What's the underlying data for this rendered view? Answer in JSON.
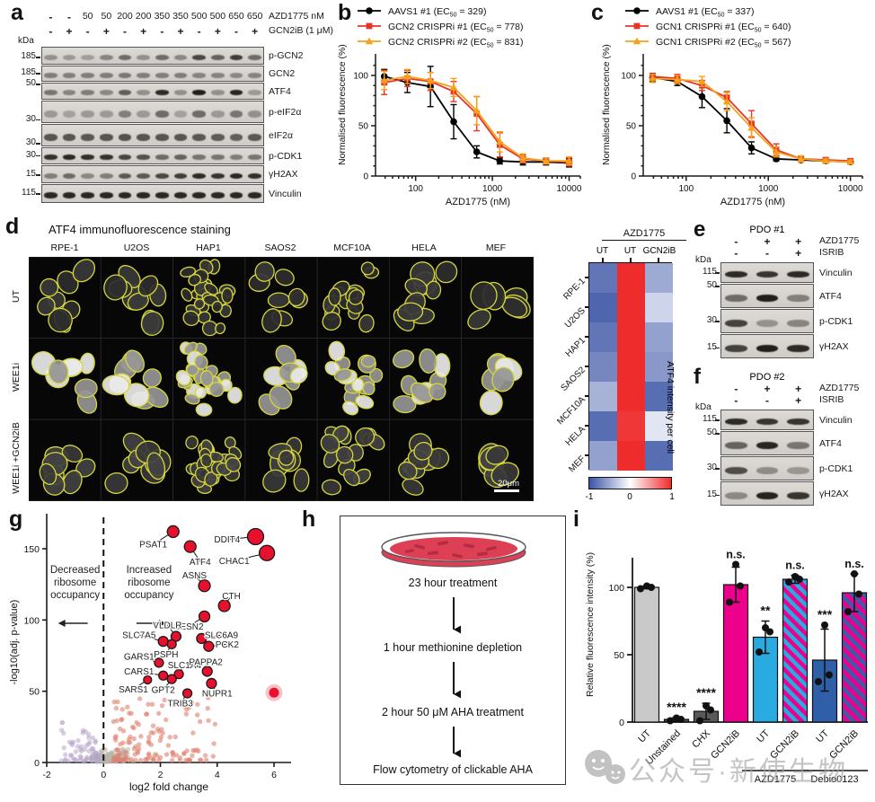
{
  "figure": {
    "panel_labels": {
      "a": "a",
      "b": "b",
      "c": "c",
      "d": "d",
      "e": "e",
      "f": "f",
      "g": "g",
      "h": "h",
      "i": "i"
    }
  },
  "panel_a": {
    "dose_values": [
      "-",
      "-",
      "50",
      "50",
      "200",
      "200",
      "350",
      "350",
      "500",
      "500",
      "650",
      "650"
    ],
    "dose_label": "AZD1775 nM",
    "inhibitor_values": [
      "-",
      "+",
      "-",
      "+",
      "-",
      "+",
      "-",
      "+",
      "-",
      "+",
      "-",
      "+"
    ],
    "inhibitor_label": "GCN2iB (1 μM)",
    "kda_label": "kDa",
    "blots": [
      {
        "target": "p-GCN2",
        "kda": "185",
        "kda_pos": 0.5,
        "bands": [
          0.35,
          0.3,
          0.28,
          0.42,
          0.55,
          0.35,
          0.55,
          0.4,
          0.75,
          0.6,
          0.8,
          0.55
        ]
      },
      {
        "target": "GCN2",
        "kda": "185",
        "kda_pos": 0.4,
        "bands": [
          0.45,
          0.45,
          0.45,
          0.45,
          0.48,
          0.45,
          0.45,
          0.45,
          0.42,
          0.42,
          0.4,
          0.42
        ]
      },
      {
        "target": "ATF4",
        "kda": "50",
        "kda_pos": 0.02,
        "bands": [
          0.5,
          0.42,
          0.46,
          0.4,
          0.62,
          0.36,
          0.9,
          0.36,
          0.97,
          0.36,
          0.93,
          0.3
        ]
      },
      {
        "target": "p-eIF2α",
        "kda": "30",
        "kda_pos": 0.78,
        "bands": [
          0.3,
          0.26,
          0.3,
          0.3,
          0.45,
          0.3,
          0.55,
          0.26,
          0.55,
          0.3,
          0.5,
          0.35
        ]
      },
      {
        "target": "eIF2α",
        "kda": "30",
        "kda_pos": 0.8,
        "bands": [
          0.68,
          0.68,
          0.66,
          0.68,
          0.7,
          0.68,
          0.68,
          0.68,
          0.66,
          0.64,
          0.62,
          0.66
        ]
      },
      {
        "target": "p-CDK1",
        "kda": "30",
        "kda_pos": 0.4,
        "bands": [
          0.88,
          0.92,
          0.88,
          0.86,
          0.76,
          0.7,
          0.56,
          0.6,
          0.5,
          0.5,
          0.46,
          0.5
        ]
      },
      {
        "target": "γH2AX",
        "kda": "15",
        "kda_pos": 0.45,
        "bands": [
          0.45,
          0.55,
          0.4,
          0.45,
          0.65,
          0.65,
          0.75,
          0.8,
          0.9,
          0.85,
          0.92,
          0.88
        ]
      },
      {
        "target": "Vinculin",
        "kda": "115",
        "kda_pos": 0.45,
        "bands": [
          0.92,
          0.92,
          0.92,
          0.92,
          0.92,
          0.92,
          0.92,
          0.92,
          0.92,
          0.92,
          0.92,
          0.92
        ]
      }
    ]
  },
  "panel_d": {
    "title": "ATF4 immunofluorescence staining",
    "columns": [
      "RPE-1",
      "U2OS",
      "HAP1",
      "SAOS2",
      "MCF10A",
      "HELA",
      "MEF"
    ],
    "rows": [
      "UT",
      "WEE1i",
      "WEE1i +GCN2iB"
    ],
    "scale_bar": "20μm",
    "cell_counts": [
      8,
      9,
      26,
      8,
      15,
      9,
      6
    ],
    "cell_size": [
      11,
      12,
      7,
      11,
      8.5,
      11,
      13
    ]
  },
  "panel_e": {
    "title": "PDO #1",
    "cond_rows": [
      {
        "values": [
          "-",
          "+",
          "+"
        ],
        "label": "AZD1775"
      },
      {
        "values": [
          "-",
          "-",
          "+"
        ],
        "label": "ISRIB"
      }
    ],
    "kda_label": "kDa",
    "blots": [
      {
        "target": "Vinculin",
        "kda": "115",
        "kda_pos": 0.45,
        "bands": [
          0.9,
          0.85,
          0.9
        ]
      },
      {
        "target": "ATF4",
        "kda": "50",
        "kda_pos": 0.05,
        "bands": [
          0.55,
          0.97,
          0.45
        ]
      },
      {
        "target": "p-CDK1",
        "kda": "30",
        "kda_pos": 0.45,
        "bands": [
          0.78,
          0.35,
          0.42
        ]
      },
      {
        "target": "γH2AX",
        "kda": "15",
        "kda_pos": 0.5,
        "bands": [
          0.78,
          0.97,
          0.9
        ]
      }
    ]
  },
  "panel_f": {
    "title": "PDO #2",
    "cond_rows": [
      {
        "values": [
          "-",
          "+",
          "+"
        ],
        "label": "AZD1775"
      },
      {
        "values": [
          "-",
          "-",
          "+"
        ],
        "label": "ISRIB"
      }
    ],
    "kda_label": "kDa",
    "blots": [
      {
        "target": "Vinculin",
        "kda": "115",
        "kda_pos": 0.45,
        "bands": [
          0.9,
          0.85,
          0.85
        ]
      },
      {
        "target": "ATF4",
        "kda": "50",
        "kda_pos": 0.05,
        "bands": [
          0.6,
          0.93,
          0.5
        ]
      },
      {
        "target": "p-CDK1",
        "kda": "30",
        "kda_pos": 0.45,
        "bands": [
          0.72,
          0.38,
          0.32
        ]
      },
      {
        "target": "γH2AX",
        "kda": "15",
        "kda_pos": 0.5,
        "bands": [
          0.4,
          0.95,
          0.85
        ]
      }
    ]
  },
  "panel_h": {
    "steps": [
      "23 hour treatment",
      "1 hour methionine depletion",
      "2 hour 50 μM AHA treatment",
      "Flow cytometry of clickable AHA"
    ]
  },
  "watermark": {
    "text": "公众号·新使生物"
  },
  "chart_data": [
    {
      "id": "b",
      "type": "line",
      "xlabel": "AZD1775 (nM)",
      "ylabel": "Normalised fluorescence (%)",
      "xscale": "log",
      "xticks": [
        100,
        1000,
        10000
      ],
      "yticks": [
        0,
        50,
        100
      ],
      "ylim": [
        0,
        120
      ],
      "x": [
        39,
        78,
        156,
        313,
        625,
        1250,
        2500,
        5000,
        10000
      ],
      "series": [
        {
          "name": "AAVS1 #1",
          "ec50": "329",
          "marker": "circle",
          "color": "#000000",
          "values": [
            99,
            93,
            89,
            54,
            24,
            15,
            14,
            14,
            13
          ],
          "errors": [
            7,
            10,
            20,
            17,
            6,
            3,
            3,
            3,
            4
          ]
        },
        {
          "name": "GCN2 CRISPRi #1",
          "ec50": "778",
          "marker": "square",
          "color": "#E8352A",
          "values": [
            93,
            97,
            94,
            84,
            62,
            31,
            17,
            15,
            14
          ],
          "errors": [
            12,
            8,
            9,
            10,
            17,
            12,
            4,
            3,
            4
          ]
        },
        {
          "name": "GCN2 CRISPRi #2",
          "ec50": "831",
          "marker": "triangle",
          "color": "#F7A11A",
          "values": [
            95,
            99,
            95,
            88,
            65,
            34,
            18,
            15,
            15
          ],
          "errors": [
            9,
            7,
            8,
            9,
            14,
            10,
            4,
            3,
            4
          ]
        }
      ]
    },
    {
      "id": "c",
      "type": "line",
      "xlabel": "AZD1775 (nM)",
      "ylabel": "Normalised fluorescence (%)",
      "xscale": "log",
      "xticks": [
        100,
        1000,
        10000
      ],
      "yticks": [
        0,
        50,
        100
      ],
      "ylim": [
        0,
        120
      ],
      "x": [
        39,
        78,
        156,
        313,
        625,
        1250,
        2500,
        5000,
        10000
      ],
      "series": [
        {
          "name": "AAVS1 #1",
          "ec50": "337",
          "marker": "circle",
          "color": "#000000",
          "values": [
            98,
            94,
            79,
            55,
            28,
            17,
            16,
            15,
            14
          ],
          "errors": [
            4,
            4,
            11,
            12,
            6,
            2,
            2,
            2,
            2
          ]
        },
        {
          "name": "GCN1 CRISPRi #1",
          "ec50": "640",
          "marker": "square",
          "color": "#E8352A",
          "values": [
            99,
            97,
            90,
            78,
            52,
            26,
            17,
            16,
            15
          ],
          "errors": [
            3,
            4,
            5,
            6,
            13,
            6,
            3,
            2,
            2
          ]
        },
        {
          "name": "GCN1 CRISPRi #2",
          "ec50": "567",
          "marker": "triangle",
          "color": "#F7A11A",
          "values": [
            97,
            96,
            94,
            74,
            48,
            24,
            17,
            15,
            14
          ],
          "errors": [
            4,
            4,
            5,
            9,
            10,
            5,
            3,
            2,
            2
          ]
        }
      ]
    },
    {
      "id": "d_heatmap",
      "type": "heatmap",
      "title": "AZD1775",
      "columns": [
        "UT",
        "UT",
        "GCN2iB"
      ],
      "rows": [
        "RPE-1",
        "U2OS",
        "HAP1",
        "SAOS2",
        "MCF10A",
        "HELA",
        "MEF"
      ],
      "values": [
        [
          -0.8,
          1,
          -0.5
        ],
        [
          -0.9,
          1,
          -0.25
        ],
        [
          -0.8,
          1,
          -0.55
        ],
        [
          -0.7,
          1,
          -0.6
        ],
        [
          -0.45,
          1,
          -0.85
        ],
        [
          -0.85,
          0.95,
          -0.15
        ],
        [
          -0.55,
          1,
          -0.85
        ]
      ],
      "colorbar_ticks": [
        "-1",
        "0",
        "1"
      ],
      "right_label": "ATF4 intensity per cell",
      "color_low": "#3B54A5",
      "color_mid": "#FFFFFF",
      "color_high": "#EE2C2C"
    },
    {
      "id": "g",
      "type": "scatter",
      "xlabel": "log2 fold change",
      "ylabel": "-log10(adj. p-value)",
      "xticks": [
        -2,
        0,
        2,
        4,
        6
      ],
      "yticks": [
        0,
        50,
        100,
        150
      ],
      "xlim": [
        -2,
        6.6
      ],
      "ylim": [
        0,
        172
      ],
      "annotations": [
        {
          "lines": [
            "Decreased",
            "ribosome",
            "occupancy"
          ],
          "arrow": "left",
          "x": -1.0
        },
        {
          "lines": [
            "Increased",
            "ribosome",
            "occupancy"
          ],
          "arrow": "right",
          "x": 1.6
        }
      ],
      "point_color": "#E8112D",
      "labeled_points": [
        {
          "name": "PSAT1",
          "x": 2.45,
          "y": 162,
          "r": 6.5,
          "lx": 1.75,
          "ly": 153
        },
        {
          "name": "ATF4",
          "x": 3.05,
          "y": 151.5,
          "r": 6.5,
          "lx": 3.4,
          "ly": 141
        },
        {
          "name": "DDIT4",
          "x": 5.35,
          "y": 158.5,
          "r": 9,
          "lx": 4.35,
          "ly": 156.5
        },
        {
          "name": "CHAC1",
          "x": 5.75,
          "y": 147,
          "r": 8.5,
          "lx": 4.6,
          "ly": 141.5
        },
        {
          "name": "ASNS",
          "x": 3.55,
          "y": 124,
          "r": 6.5,
          "lx": 3.2,
          "ly": 131.5
        },
        {
          "name": "CTH",
          "x": 4.25,
          "y": 110,
          "r": 6.5,
          "lx": 4.5,
          "ly": 117
        },
        {
          "name": "SESN2",
          "x": 3.55,
          "y": 102.5,
          "r": 6,
          "lx": 3.0,
          "ly": 95.5
        },
        {
          "name": "VLDLR",
          "x": 2.55,
          "y": 88.5,
          "r": 5.5,
          "lx": 2.25,
          "ly": 96.5
        },
        {
          "name": "SLC7A5",
          "x": 2.1,
          "y": 85,
          "r": 5.5,
          "lx": 1.25,
          "ly": 89.5
        },
        {
          "name": "SLC6A9",
          "x": 3.45,
          "y": 87,
          "r": 5.5,
          "lx": 4.15,
          "ly": 89.5
        },
        {
          "name": "PCK2",
          "x": 3.7,
          "y": 81.5,
          "r": 5.5,
          "lx": 4.35,
          "ly": 83
        },
        {
          "name": "PSPH",
          "x": 2.4,
          "y": 83,
          "r": 5,
          "lx": 2.2,
          "ly": 76
        },
        {
          "name": "GARS1",
          "x": 1.95,
          "y": 70,
          "r": 5,
          "lx": 1.25,
          "ly": 74.5
        },
        {
          "name": "CARS1",
          "x": 2.1,
          "y": 61,
          "r": 5,
          "lx": 1.25,
          "ly": 64
        },
        {
          "name": "SLC1A4",
          "x": 2.65,
          "y": 62,
          "r": 5,
          "lx": 2.85,
          "ly": 68.5
        },
        {
          "name": "SARS1",
          "x": 1.55,
          "y": 58,
          "r": 4.5,
          "lx": 1.05,
          "ly": 51.5
        },
        {
          "name": "GPT2",
          "x": 2.4,
          "y": 58.5,
          "r": 5,
          "lx": 2.1,
          "ly": 51
        },
        {
          "name": "PAPPA2",
          "x": 3.65,
          "y": 64,
          "r": 5.5,
          "lx": 3.6,
          "ly": 70.5
        },
        {
          "name": "NUPR1",
          "x": 3.8,
          "y": 55.5,
          "r": 5.5,
          "lx": 4.0,
          "ly": 48.5
        },
        {
          "name": "TRIB3",
          "x": 2.95,
          "y": 48.5,
          "r": 5,
          "lx": 2.7,
          "ly": 41.5
        }
      ],
      "unlabeled_point": {
        "x": 6.0,
        "y": 49,
        "r": 5.5
      }
    },
    {
      "id": "i",
      "type": "bar",
      "ylabel": "Relative fluorescence intensity (%)",
      "yticks": [
        0,
        50,
        100
      ],
      "ylim": [
        0,
        125
      ],
      "bars": [
        {
          "label": "UT",
          "value": 100,
          "error": 1,
          "sig": "",
          "fill": "#C9C9C9",
          "dots": [
            99,
            100,
            101
          ]
        },
        {
          "label": "Unstained",
          "value": 2,
          "error": 1.5,
          "sig": "****",
          "fill": "#4D4D4D",
          "dots": [
            1,
            2,
            3
          ]
        },
        {
          "label": "CHX",
          "value": 8,
          "error": 6,
          "sig": "****",
          "fill": "#595959",
          "dots": [
            1,
            9,
            12
          ]
        },
        {
          "label": "GCN2iB",
          "value": 102,
          "error": 13,
          "sig": "n.s.",
          "fill": "#EC008C",
          "dots": [
            89,
            101,
            117
          ]
        },
        {
          "label": "UT",
          "value": 63,
          "error": 12,
          "sig": "**",
          "fill": "#29ABE2",
          "dots": [
            52,
            67,
            70
          ]
        },
        {
          "label": "GCN2iB",
          "value": 106,
          "error": 3,
          "sig": "n.s.",
          "fill": "stripe-cyan",
          "dots": [
            104,
            106,
            108
          ]
        },
        {
          "label": "UT",
          "value": 46,
          "error": 23,
          "sig": "***",
          "fill": "#2E5FA8",
          "dots": [
            30,
            35,
            72
          ]
        },
        {
          "label": "GCN2iB",
          "value": 96,
          "error": 14,
          "sig": "n.s.",
          "fill": "stripe-blue",
          "dots": [
            82,
            95,
            110
          ]
        }
      ],
      "groups": [
        {
          "label": "AZD1775",
          "from": 4,
          "to": 5
        },
        {
          "label": "Debio0123",
          "from": 6,
          "to": 7
        }
      ],
      "stripe_colors": {
        "magenta": "#EC008C",
        "cyan": "#29ABE2",
        "blue": "#4059A8"
      }
    }
  ]
}
